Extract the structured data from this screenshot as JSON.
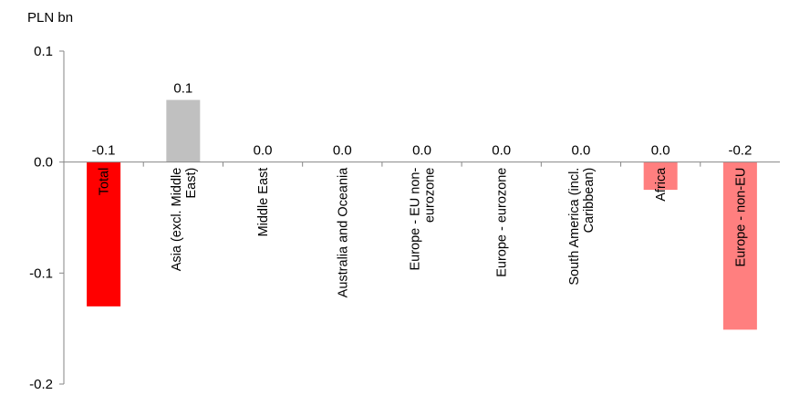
{
  "chart_data": {
    "type": "bar",
    "unit_label": "PLN bn",
    "ylim": [
      -0.2,
      0.1
    ],
    "y_ticks": [
      0.1,
      0.0,
      -0.1,
      -0.2
    ],
    "y_tick_labels": [
      "0.1",
      "0.0",
      "-0.1",
      "-0.2"
    ],
    "grid": false,
    "legend": "none",
    "categories": [
      [
        "Total"
      ],
      [
        "Asia (excl. Middle",
        "East)"
      ],
      [
        "Middle East"
      ],
      [
        "Australia and Oceania"
      ],
      [
        "Europe - EU non-",
        "eurozone"
      ],
      [
        "Europe - eurozone"
      ],
      [
        "South America (incl.",
        "Caribbean)"
      ],
      [
        "Africa"
      ],
      [
        "Europe - non-EU"
      ]
    ],
    "values": [
      -0.13,
      0.056,
      0.0,
      0.0,
      0.0,
      0.0,
      0.0,
      -0.025,
      -0.151
    ],
    "data_labels": [
      "-0.1",
      "0.1",
      "0.0",
      "0.0",
      "0.0",
      "0.0",
      "0.0",
      "0.0",
      "-0.2"
    ],
    "colors": [
      "#ff0000",
      "#c0c0c0",
      "#c0c0c0",
      "#c0c0c0",
      "#c0c0c0",
      "#c0c0c0",
      "#c0c0c0",
      "#ff7f7f",
      "#ff7f7f"
    ]
  }
}
